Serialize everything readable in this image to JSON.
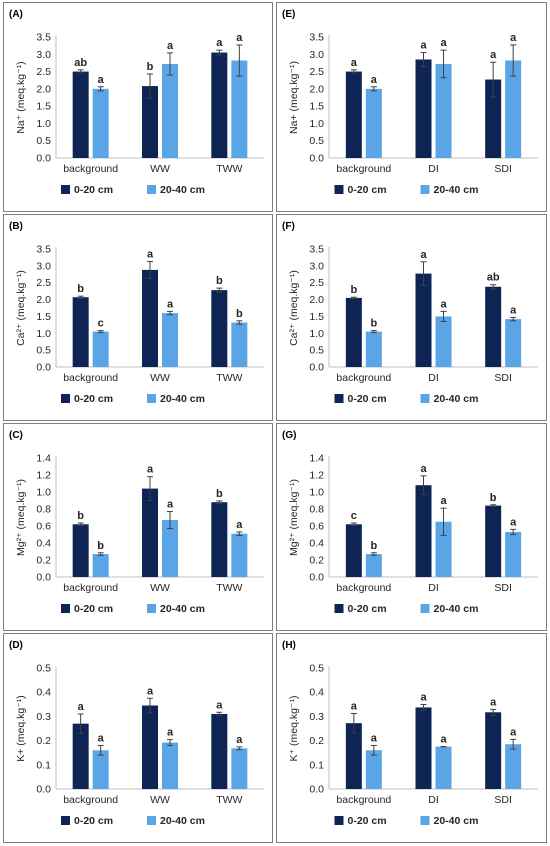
{
  "colors": {
    "series_0_20": "#0d2455",
    "series_20_40": "#5aa5e6",
    "error": "#404040"
  },
  "chart_data": [
    {
      "type": "bar",
      "panel": "(A)",
      "ylabel": "Na⁺ (meq.kg⁻¹)",
      "yticks": [
        "0.0",
        "0.5",
        "1.0",
        "1.5",
        "2.0",
        "2.5",
        "3.0",
        "3.5"
      ],
      "ylim": [
        0,
        3.5
      ],
      "categories": [
        "background",
        "WW",
        "TWW"
      ],
      "series": [
        {
          "name": "0-20 cm",
          "values": [
            2.5,
            2.08,
            3.05
          ],
          "errors": [
            0.05,
            0.35,
            0.07
          ],
          "letters": [
            "ab",
            "b",
            "a"
          ]
        },
        {
          "name": "20-40 cm",
          "values": [
            2.0,
            2.72,
            2.82
          ],
          "errors": [
            0.06,
            0.32,
            0.45
          ],
          "letters": [
            "a",
            "a",
            "a"
          ]
        }
      ]
    },
    {
      "type": "bar",
      "panel": "(E)",
      "ylabel": "Na+ (meq.kg⁻¹)",
      "yticks": [
        "0.0",
        "0.5",
        "1.0",
        "1.5",
        "2.0",
        "2.5",
        "3.0",
        "3.5"
      ],
      "ylim": [
        0,
        3.5
      ],
      "categories": [
        "background",
        "DI",
        "SDI"
      ],
      "series": [
        {
          "name": "0-20 cm",
          "values": [
            2.5,
            2.85,
            2.27
          ],
          "errors": [
            0.05,
            0.2,
            0.5
          ],
          "letters": [
            "a",
            "a",
            "a"
          ]
        },
        {
          "name": "20-40 cm",
          "values": [
            2.0,
            2.72,
            2.82
          ],
          "errors": [
            0.06,
            0.4,
            0.45
          ],
          "letters": [
            "a",
            "a",
            "a"
          ]
        }
      ]
    },
    {
      "type": "bar",
      "panel": "(B)",
      "ylabel": "Ca²⁺ (meq.kg⁻¹)",
      "yticks": [
        "0.0",
        "0.5",
        "1.0",
        "1.5",
        "2.0",
        "2.5",
        "3.0",
        "3.5"
      ],
      "ylim": [
        0,
        3.5
      ],
      "categories": [
        "background",
        "WW",
        "TWW"
      ],
      "series": [
        {
          "name": "0-20 cm",
          "values": [
            2.07,
            2.88,
            2.28
          ],
          "errors": [
            0.03,
            0.25,
            0.06
          ],
          "letters": [
            "b",
            "a",
            "b"
          ]
        },
        {
          "name": "20-40 cm",
          "values": [
            1.05,
            1.6,
            1.32
          ],
          "errors": [
            0.03,
            0.05,
            0.05
          ],
          "letters": [
            "c",
            "a",
            "b"
          ]
        }
      ]
    },
    {
      "type": "bar",
      "panel": "(F)",
      "ylabel": "Ca²⁺ (meq.kg⁻¹)",
      "yticks": [
        "0.0",
        "0.5",
        "1.0",
        "1.5",
        "2.0",
        "2.5",
        "3.0",
        "3.5"
      ],
      "ylim": [
        0,
        3.5
      ],
      "categories": [
        "background",
        "DI",
        "SDI"
      ],
      "series": [
        {
          "name": "0-20 cm",
          "values": [
            2.05,
            2.77,
            2.38
          ],
          "errors": [
            0.02,
            0.35,
            0.06
          ],
          "letters": [
            "b",
            "a",
            "ab"
          ]
        },
        {
          "name": "20-40 cm",
          "values": [
            1.05,
            1.5,
            1.42
          ],
          "errors": [
            0.03,
            0.15,
            0.05
          ],
          "letters": [
            "b",
            "a",
            "a"
          ]
        }
      ]
    },
    {
      "type": "bar",
      "panel": "(C)",
      "ylabel": "Mg²⁺ (meq.kg⁻¹)",
      "yticks": [
        "0.0",
        "0.2",
        "0.4",
        "0.6",
        "0.8",
        "1.0",
        "1.2",
        "1.4"
      ],
      "ylim": [
        0,
        1.4
      ],
      "categories": [
        "background",
        "WW",
        "TWW"
      ],
      "series": [
        {
          "name": "0-20 cm",
          "values": [
            0.62,
            1.04,
            0.88
          ],
          "errors": [
            0.015,
            0.14,
            0.015
          ],
          "letters": [
            "b",
            "a",
            "b"
          ]
        },
        {
          "name": "20-40 cm",
          "values": [
            0.27,
            0.67,
            0.51
          ],
          "errors": [
            0.015,
            0.1,
            0.02
          ],
          "letters": [
            "b",
            "a",
            "a"
          ]
        }
      ]
    },
    {
      "type": "bar",
      "panel": "(G)",
      "ylabel": "Mg²⁺ (meq.kg⁻¹)",
      "yticks": [
        "0.0",
        "0.2",
        "0.4",
        "0.6",
        "0.8",
        "1.0",
        "1.2",
        "1.4"
      ],
      "ylim": [
        0,
        1.4
      ],
      "categories": [
        "background",
        "DI",
        "SDI"
      ],
      "series": [
        {
          "name": "0-20 cm",
          "values": [
            0.62,
            1.08,
            0.84
          ],
          "errors": [
            0.015,
            0.11,
            0.01
          ],
          "letters": [
            "c",
            "a",
            "b"
          ]
        },
        {
          "name": "20-40 cm",
          "values": [
            0.27,
            0.65,
            0.53
          ],
          "errors": [
            0.015,
            0.16,
            0.03
          ],
          "letters": [
            "b",
            "a",
            "a"
          ]
        }
      ]
    },
    {
      "type": "bar",
      "panel": "(D)",
      "ylabel": "K+ (meq.kg⁻¹)",
      "yticks": [
        "0.0",
        "0.1",
        "0.2",
        "0.3",
        "0.4",
        "0.5"
      ],
      "ylim": [
        0,
        0.5
      ],
      "categories": [
        "background",
        "WW",
        "TWW"
      ],
      "series": [
        {
          "name": "0-20 cm",
          "values": [
            0.27,
            0.345,
            0.31
          ],
          "errors": [
            0.04,
            0.03,
            0.007
          ],
          "letters": [
            "a",
            "a",
            "a"
          ]
        },
        {
          "name": "20-40 cm",
          "values": [
            0.16,
            0.192,
            0.168
          ],
          "errors": [
            0.02,
            0.012,
            0.006
          ],
          "letters": [
            "a",
            "a",
            "a"
          ]
        }
      ]
    },
    {
      "type": "bar",
      "panel": "(H)",
      "ylabel": "K⁺ (meq.kg⁻¹)",
      "yticks": [
        "0.0",
        "0.1",
        "0.2",
        "0.3",
        "0.4",
        "0.5"
      ],
      "ylim": [
        0,
        0.5
      ],
      "categories": [
        "background",
        "DI",
        "SDI"
      ],
      "series": [
        {
          "name": "0-20 cm",
          "values": [
            0.272,
            0.337,
            0.317
          ],
          "errors": [
            0.04,
            0.012,
            0.012
          ],
          "letters": [
            "a",
            "a",
            "a"
          ]
        },
        {
          "name": "20-40 cm",
          "values": [
            0.16,
            0.175,
            0.185
          ],
          "errors": [
            0.02,
            0.0,
            0.02
          ],
          "letters": [
            "a",
            "a",
            "a"
          ]
        }
      ]
    }
  ]
}
